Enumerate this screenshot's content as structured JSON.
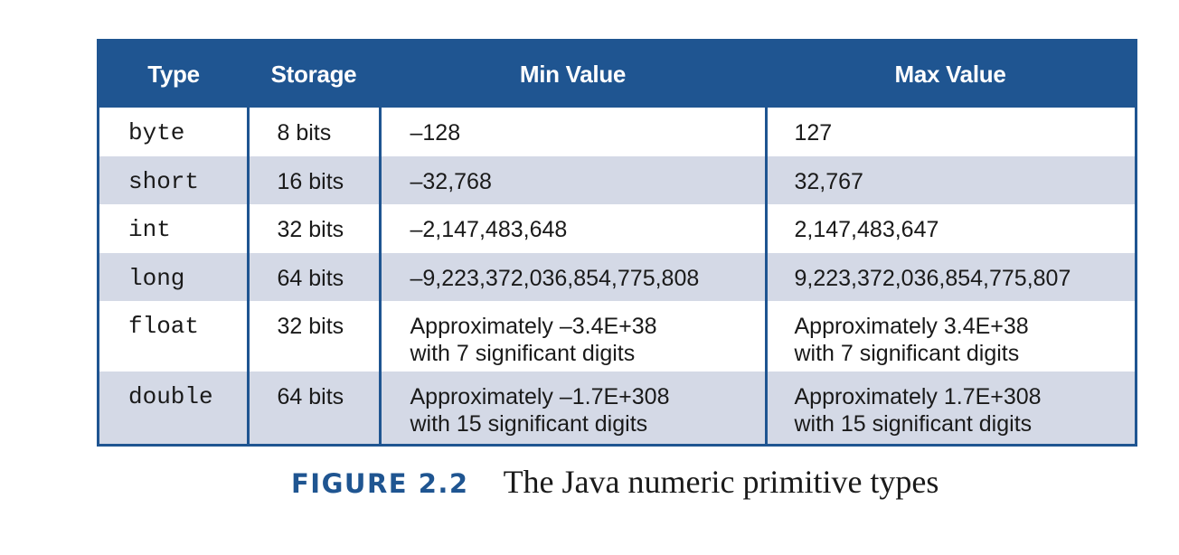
{
  "table": {
    "headers": [
      "Type",
      "Storage",
      "Min Value",
      "Max Value"
    ],
    "rows": [
      {
        "type": "byte",
        "storage": "8 bits",
        "min": [
          "–128"
        ],
        "max": [
          "127"
        ]
      },
      {
        "type": "short",
        "storage": "16 bits",
        "min": [
          "–32,768"
        ],
        "max": [
          "32,767"
        ]
      },
      {
        "type": "int",
        "storage": "32 bits",
        "min": [
          "–2,147,483,648"
        ],
        "max": [
          "2,147,483,647"
        ]
      },
      {
        "type": "long",
        "storage": "64 bits",
        "min": [
          "–9,223,372,036,854,775,808"
        ],
        "max": [
          "9,223,372,036,854,775,807"
        ]
      },
      {
        "type": "float",
        "storage": "32 bits",
        "min": [
          "Approximately –3.4E+38",
          "with 7 significant digits"
        ],
        "max": [
          "Approximately 3.4E+38",
          "with 7 significant digits"
        ]
      },
      {
        "type": "double",
        "storage": "64 bits",
        "min": [
          "Approximately –1.7E+308",
          "with 15 significant digits"
        ],
        "max": [
          "Approximately 1.7E+308",
          "with 15 significant digits"
        ]
      }
    ]
  },
  "caption": {
    "label": "FIGURE 2.2",
    "text": "The Java numeric primitive types"
  },
  "colors": {
    "header_bg": "#1f5591",
    "shaded_row": "#d4d9e6",
    "caption_label": "#1f5591"
  }
}
